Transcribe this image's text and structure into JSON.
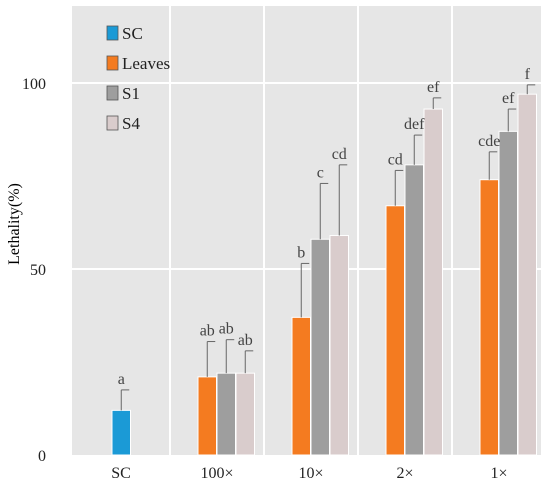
{
  "chart_data": {
    "type": "bar",
    "ylabel": "Lethality(%)",
    "ylim": [
      0,
      120
    ],
    "yticks": [
      0,
      50,
      100
    ],
    "categories": [
      "SC",
      "100×",
      "10×",
      "2×",
      "1×"
    ],
    "series": [
      {
        "name": "SC",
        "color": "#1b9ad6",
        "values": [
          12,
          null,
          null,
          null,
          null
        ],
        "errors": [
          5.5,
          null,
          null,
          null,
          null
        ],
        "labels": [
          "a",
          null,
          null,
          null,
          null
        ]
      },
      {
        "name": "Leaves",
        "color": "#f47b20",
        "values": [
          null,
          21,
          37,
          67,
          74
        ],
        "errors": [
          null,
          9.5,
          14.5,
          9.5,
          7.5
        ],
        "labels": [
          null,
          "ab",
          "b",
          "cd",
          "cde"
        ]
      },
      {
        "name": "S1",
        "color": "#9e9e9e",
        "values": [
          null,
          22,
          58,
          78,
          87
        ],
        "errors": [
          null,
          9,
          15,
          8,
          6
        ],
        "labels": [
          null,
          "ab",
          "c",
          "def",
          "ef"
        ]
      },
      {
        "name": "S4",
        "color": "#d9cccc",
        "values": [
          null,
          22,
          59,
          93,
          97
        ],
        "errors": [
          null,
          6,
          19,
          3,
          2.5
        ],
        "labels": [
          null,
          "ab",
          "cd",
          "ef",
          "f"
        ]
      }
    ],
    "legend_position": "top-left",
    "grid": true,
    "background": "#e6e6e6"
  }
}
